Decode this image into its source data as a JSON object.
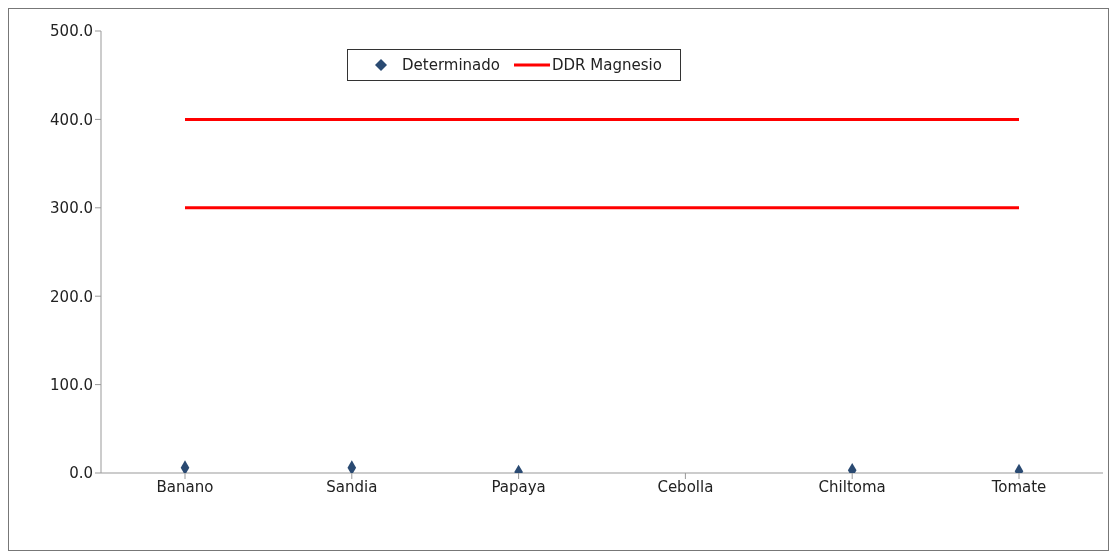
{
  "chart_data": {
    "type": "scatter",
    "categories": [
      "Banano",
      "Sandia",
      "Papaya",
      "Cebolla",
      "Chiltoma",
      "Tomate"
    ],
    "series": [
      {
        "name": "Determinado",
        "color": "#2a4a72",
        "marker": "diamond",
        "values": [
          6,
          6,
          1,
          null,
          3,
          2
        ]
      },
      {
        "name": "DDR Magnesio",
        "type": "line",
        "color": "#ff0000",
        "marker": "none",
        "values": [
          300,
          300,
          300,
          300,
          300,
          300
        ]
      },
      {
        "type": "line",
        "color": "#ff0000",
        "marker": "none",
        "values": [
          400,
          400,
          400,
          400,
          400,
          400
        ]
      }
    ],
    "ylim": [
      0,
      500
    ],
    "yticks": [
      {
        "value": 0,
        "label": "0.0"
      },
      {
        "value": 100,
        "label": "100.0"
      },
      {
        "value": 200,
        "label": "200.0"
      },
      {
        "value": 300,
        "label": "300.0"
      },
      {
        "value": 400,
        "label": "400.0"
      },
      {
        "value": 500,
        "label": "500.0"
      }
    ],
    "grid": false,
    "legend": "top",
    "line_style": "solid"
  }
}
